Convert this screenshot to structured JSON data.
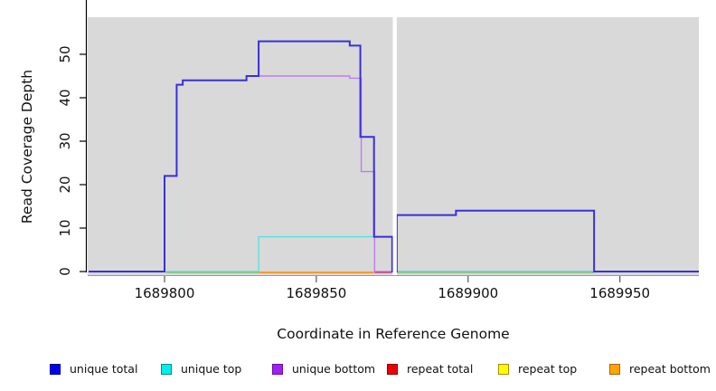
{
  "axis": {
    "x_title": "Coordinate in Reference Genome",
    "y_title": "Read Coverage Depth",
    "x_ticks": [
      {
        "label": "1689800",
        "coord": 1689800
      },
      {
        "label": "1689850",
        "coord": 1689850
      },
      {
        "label": "1689900",
        "coord": 1689900
      },
      {
        "label": "1689950",
        "coord": 1689950
      }
    ],
    "y_ticks": [
      {
        "label": "0",
        "value": 0
      },
      {
        "label": "10",
        "value": 10
      },
      {
        "label": "20",
        "value": 20
      },
      {
        "label": "30",
        "value": 30
      },
      {
        "label": "40",
        "value": 40
      },
      {
        "label": "50",
        "value": 50
      }
    ]
  },
  "chart_data": {
    "type": "line",
    "subtype": "step",
    "xlabel": "Coordinate in Reference Genome",
    "ylabel": "Read Coverage Depth",
    "xlim": [
      1689775,
      1689976
    ],
    "ylim": [
      0,
      57
    ],
    "grid": false,
    "panel_bg": "#d9d9d9",
    "white_gap_x": [
      1689875.2,
      1689876.5
    ],
    "series": [
      {
        "name": "unique bottom",
        "line_color": "#bd7df0",
        "line_width": 1.4,
        "points": [
          [
            1689775,
            0
          ],
          [
            1689800,
            22
          ],
          [
            1689804,
            43
          ],
          [
            1689806,
            44
          ],
          [
            1689827,
            45
          ],
          [
            1689861,
            44.5
          ],
          [
            1689864.8,
            23
          ],
          [
            1689869.2,
            0
          ]
        ]
      },
      {
        "name": "unique top",
        "line_color": "#5ce0e0",
        "line_width": 1.4,
        "points": [
          [
            1689775,
            0
          ],
          [
            1689831,
            8
          ],
          [
            1689875,
            0
          ]
        ]
      },
      {
        "name": "unique total",
        "line_color": "#3a30d9",
        "line_width": 2,
        "points": [
          [
            1689775,
            0
          ],
          [
            1689800,
            22
          ],
          [
            1689804,
            43
          ],
          [
            1689806,
            44
          ],
          [
            1689827,
            45
          ],
          [
            1689831,
            53
          ],
          [
            1689861,
            52
          ],
          [
            1689864.5,
            31
          ],
          [
            1689869,
            8
          ],
          [
            1689875,
            0
          ],
          [
            1689876.5,
            13
          ],
          [
            1689896,
            14
          ],
          [
            1689941.5,
            0
          ]
        ]
      }
    ],
    "baseline_segments": [
      {
        "name": "repeat-overlap-green-left",
        "from": 1689800.5,
        "to": 1689831,
        "color": "#82c882"
      },
      {
        "name": "repeat-bottom-orange",
        "from": 1689831,
        "to": 1689869,
        "color": "#ff9012"
      },
      {
        "name": "repeat-unique-crimson",
        "from": 1689869.2,
        "to": 1689874.9,
        "color": "#c9508c"
      },
      {
        "name": "repeat-overlap-green-right",
        "from": 1689876.5,
        "to": 1689941.5,
        "color": "#82c882"
      }
    ],
    "legend_position": "bottom",
    "legend": [
      {
        "label": "unique total",
        "color": "#0000EE",
        "border": "#00008B"
      },
      {
        "label": "unique top",
        "color": "#00EEEE",
        "border": "#008B8B"
      },
      {
        "label": "unique bottom",
        "color": "#A020F0",
        "border": "#6A0DAD"
      },
      {
        "label": "repeat total",
        "color": "#EE0000",
        "border": "#8B0000"
      },
      {
        "label": "repeat top",
        "color": "#FFFF00",
        "border": "#B8860B"
      },
      {
        "label": "repeat bottom",
        "color": "#FFA500",
        "border": "#B36200"
      }
    ]
  }
}
